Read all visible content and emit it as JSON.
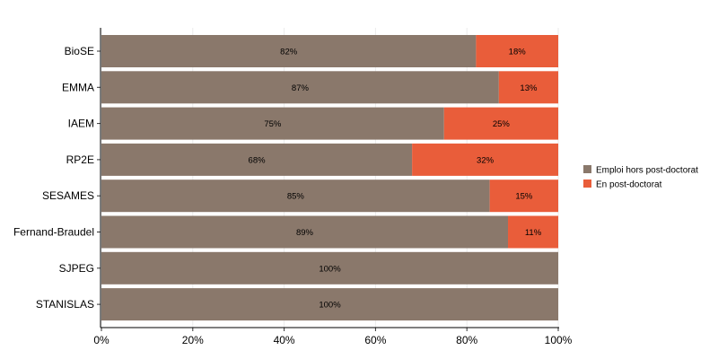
{
  "chart_data": {
    "type": "bar",
    "orientation": "horizontal",
    "stacked": true,
    "categories": [
      "BioSE",
      "EMMA",
      "IAEM",
      "RP2E",
      "SESAMES",
      "Fernand-Braudel",
      "SJPEG",
      "STANISLAS"
    ],
    "series": [
      {
        "name": "Emploi hors post-doctorat",
        "color": "#8a786b",
        "values": [
          82,
          87,
          75,
          68,
          85,
          89,
          100,
          100
        ]
      },
      {
        "name": "En post-doctorat",
        "color": "#e95d3a",
        "values": [
          18,
          13,
          25,
          32,
          15,
          11,
          0,
          0
        ]
      }
    ],
    "xlim": [
      0,
      100
    ],
    "xticks": [
      "0%",
      "20%",
      "40%",
      "60%",
      "80%",
      "100%"
    ],
    "grid": true,
    "legend_position": "right",
    "value_suffix": "%"
  }
}
